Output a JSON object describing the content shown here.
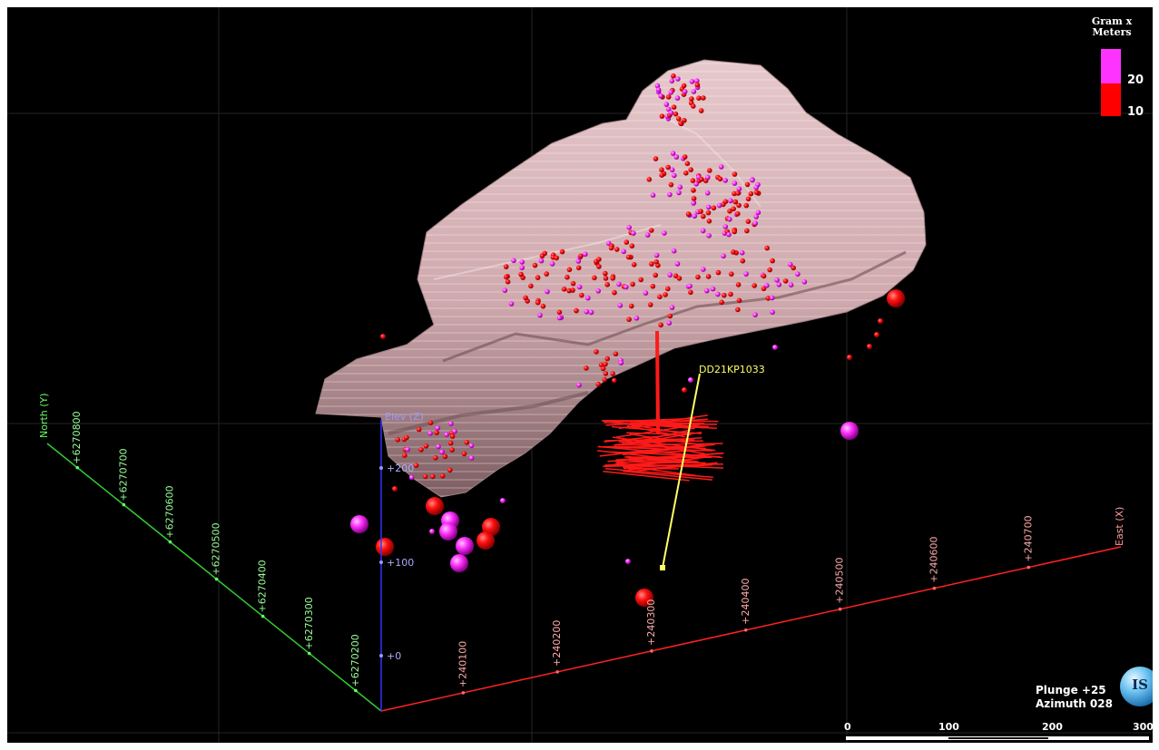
{
  "viewer": {
    "legend": {
      "title": "Gram x Meters",
      "values": [
        "20",
        "10"
      ],
      "colors": {
        "high": "#ff33ff",
        "low": "#ff0000"
      }
    },
    "axes": {
      "north": {
        "label": "North (Y)",
        "ticks": [
          "+6270200",
          "+6270300",
          "+6270400",
          "+6270500",
          "+6270600",
          "+6270700",
          "+6270800"
        ]
      },
      "east": {
        "label": "East (X)",
        "ticks": [
          "+240100",
          "+240200",
          "+240300",
          "+240400",
          "+240500",
          "+240600",
          "+240700"
        ]
      },
      "elev": {
        "label": "Elev (Z)",
        "ticks": [
          "+0",
          "+100",
          "+200"
        ]
      }
    },
    "drillhole_label": "DD21KP1033",
    "orientation": {
      "plunge": "Plunge +25",
      "azimuth": "Azimuth 028"
    },
    "scale_bar": {
      "labels": [
        "0",
        "100",
        "200",
        "300"
      ]
    },
    "globe_icon_text": "IS",
    "colors": {
      "background": "#000000",
      "north_axis": "#33cc33",
      "east_axis": "#ff2222",
      "elev_axis": "#3333ff",
      "drillhole": "#ffff66",
      "orebody": "#d8b4b8"
    }
  }
}
